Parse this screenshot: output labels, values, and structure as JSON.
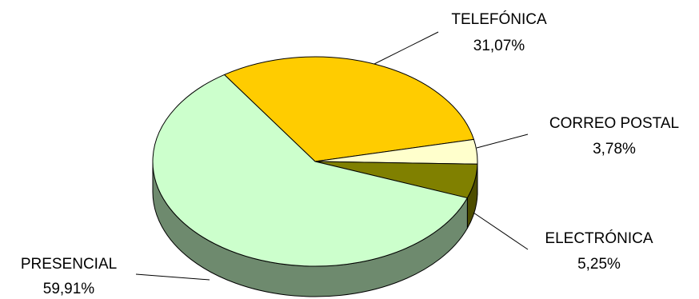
{
  "chart_data": {
    "type": "pie",
    "title": "",
    "style": "3d",
    "legend": "none",
    "slices": [
      {
        "label": "TELEFÓNICA",
        "value": 31.07,
        "display": "31,07%",
        "color": "#FFCC00",
        "side_color": "#997A00"
      },
      {
        "label": "CORREO POSTAL",
        "value": 3.78,
        "display": "3,78%",
        "color": "#FFFFCC",
        "side_color": "#99997A"
      },
      {
        "label": "ELECTRÓNICA",
        "value": 5.25,
        "display": "5,25%",
        "color": "#808000",
        "side_color": "#4D4D00"
      },
      {
        "label": "PRESENCIAL",
        "value": 59.91,
        "display": "59,91%",
        "color": "#CCFFCC",
        "side_color": "#6E8A6E"
      }
    ]
  }
}
